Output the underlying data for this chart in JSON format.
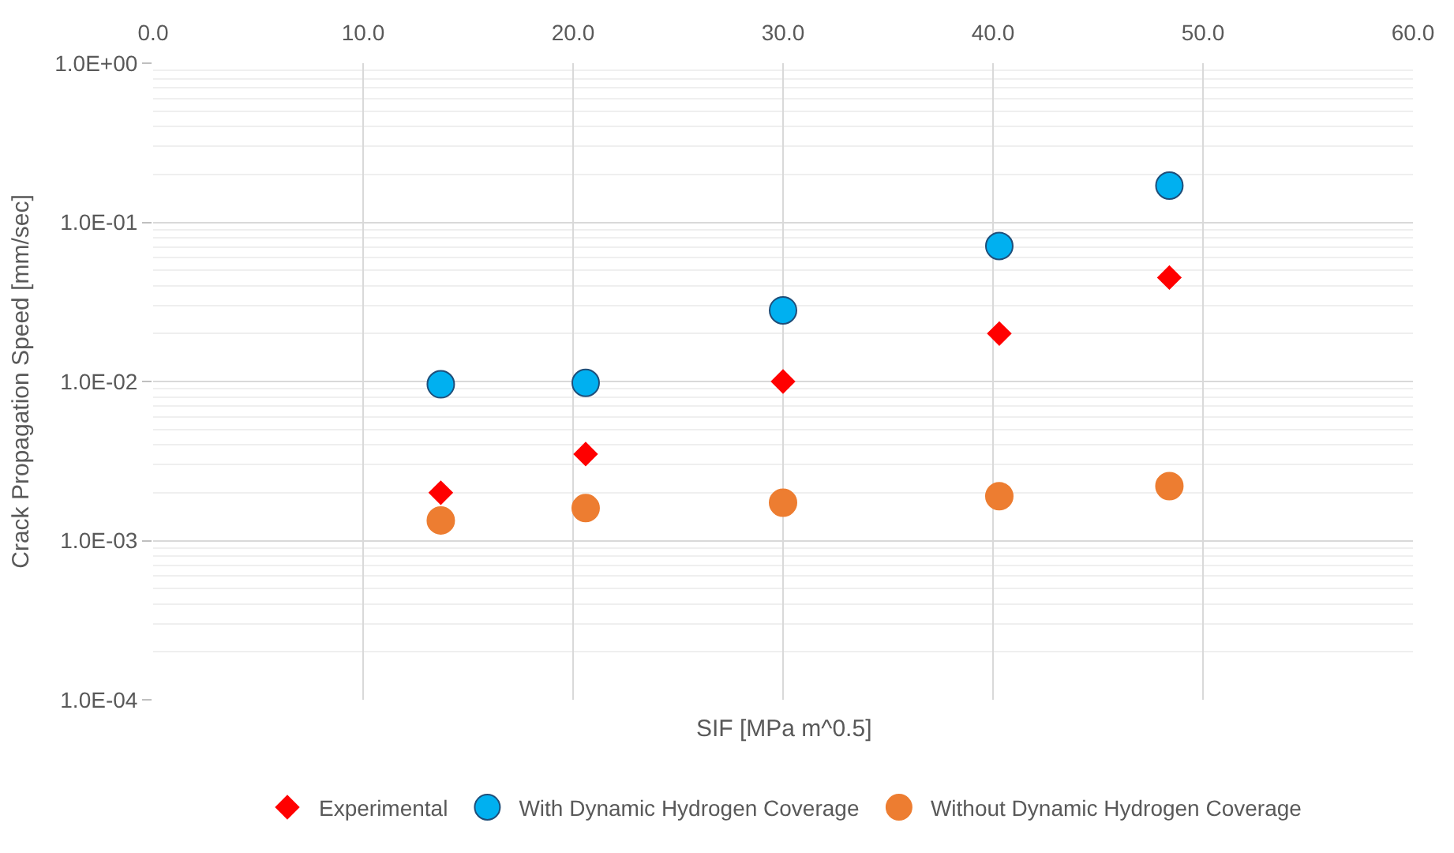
{
  "chart_data": {
    "type": "scatter",
    "xlabel": "SIF [MPa m^0.5]",
    "ylabel": "Crack Propagation Speed [mm/sec]",
    "log": "y",
    "grid": true,
    "legend": "bottom",
    "xlim": [
      0,
      60
    ],
    "xticks": [
      {
        "value": 0,
        "label": "0.0"
      },
      {
        "value": 10,
        "label": "10.0"
      },
      {
        "value": 20,
        "label": "20.0"
      },
      {
        "value": 30,
        "label": "30.0"
      },
      {
        "value": 40,
        "label": "40.0"
      },
      {
        "value": 50,
        "label": "50.0"
      },
      {
        "value": 60,
        "label": "60.0"
      }
    ],
    "ylim": [
      0.0001,
      1
    ],
    "yticks": [
      {
        "value": 0.0001,
        "label": "1.0E-04"
      },
      {
        "value": 0.001,
        "label": "1.0E-03"
      },
      {
        "value": 0.01,
        "label": "1.0E-02"
      },
      {
        "value": 0.1,
        "label": "1.0E-01"
      },
      {
        "value": 1,
        "label": "1.0E+00"
      }
    ],
    "x": [
      13.7,
      20.6,
      30.0,
      40.3,
      48.4
    ],
    "series": [
      {
        "name": "Experimental",
        "color": "#ff0000",
        "marker": "diamond",
        "values": [
          0.002,
          0.0035,
          0.01,
          0.02,
          0.045
        ]
      },
      {
        "name": "With Dynamic Hydrogen Coverage",
        "color": "#00b0f0",
        "marker": "circle",
        "values": [
          0.0096,
          0.0098,
          0.028,
          0.071,
          0.17
        ]
      },
      {
        "name": "Without Dynamic Hydrogen Coverage",
        "color": "#ed7d31",
        "marker": "circle",
        "values": [
          0.00134,
          0.0016,
          0.00173,
          0.0019,
          0.0022
        ]
      }
    ]
  }
}
